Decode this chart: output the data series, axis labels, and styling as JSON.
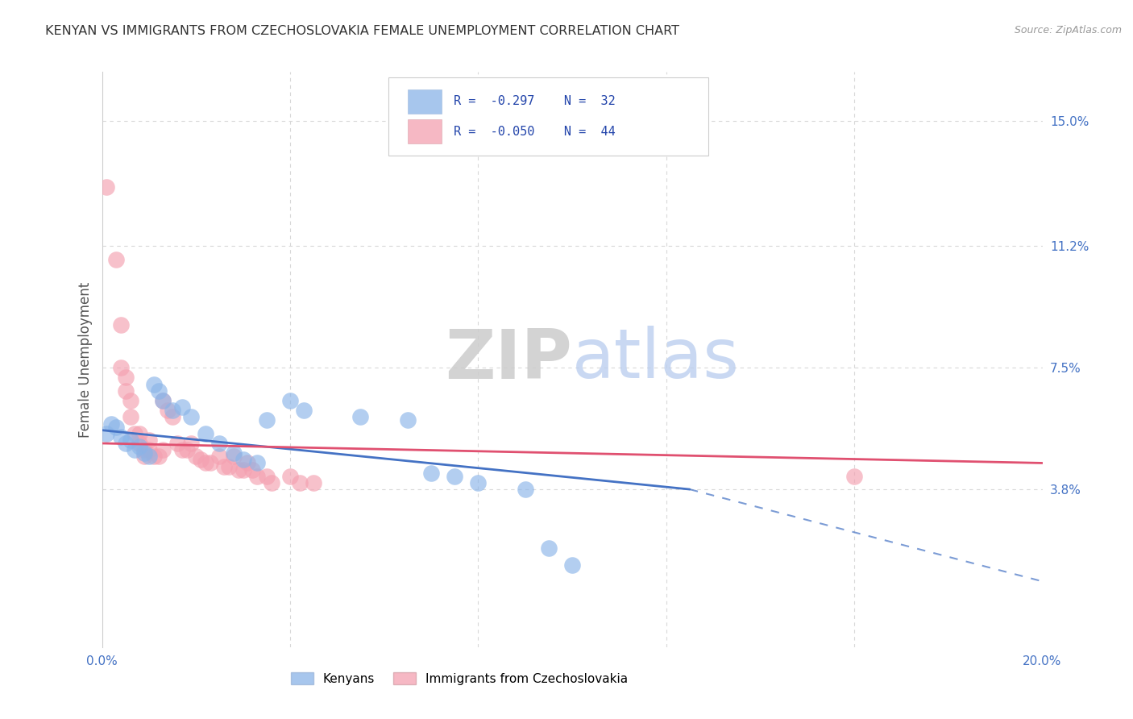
{
  "title": "KENYAN VS IMMIGRANTS FROM CZECHOSLOVAKIA FEMALE UNEMPLOYMENT CORRELATION CHART",
  "source": "Source: ZipAtlas.com",
  "ylabel": "Female Unemployment",
  "xlim": [
    0.0,
    0.2
  ],
  "ylim": [
    -0.01,
    0.165
  ],
  "ytick_positions": [
    0.038,
    0.075,
    0.112,
    0.15
  ],
  "ytick_labels": [
    "3.8%",
    "7.5%",
    "11.2%",
    "15.0%"
  ],
  "kenyan_color": "#8ab4e8",
  "czech_color": "#f4a0b0",
  "kenyan_line_color": "#4472c4",
  "czech_line_color": "#e05070",
  "watermark_zip": "ZIP",
  "watermark_atlas": "atlas",
  "legend_bottom_1": "Kenyans",
  "legend_bottom_2": "Immigrants from Czechoslovakia",
  "background_color": "#ffffff",
  "grid_color": "#d8d8d8",
  "title_color": "#333333",
  "source_color": "#999999",
  "kenyan_points": [
    [
      0.001,
      0.055
    ],
    [
      0.002,
      0.058
    ],
    [
      0.003,
      0.057
    ],
    [
      0.004,
      0.054
    ],
    [
      0.005,
      0.052
    ],
    [
      0.006,
      0.053
    ],
    [
      0.007,
      0.05
    ],
    [
      0.008,
      0.051
    ],
    [
      0.009,
      0.049
    ],
    [
      0.01,
      0.048
    ],
    [
      0.011,
      0.07
    ],
    [
      0.012,
      0.068
    ],
    [
      0.013,
      0.065
    ],
    [
      0.015,
      0.062
    ],
    [
      0.017,
      0.063
    ],
    [
      0.019,
      0.06
    ],
    [
      0.022,
      0.055
    ],
    [
      0.025,
      0.052
    ],
    [
      0.028,
      0.049
    ],
    [
      0.03,
      0.047
    ],
    [
      0.033,
      0.046
    ],
    [
      0.035,
      0.059
    ],
    [
      0.04,
      0.065
    ],
    [
      0.043,
      0.062
    ],
    [
      0.055,
      0.06
    ],
    [
      0.065,
      0.059
    ],
    [
      0.07,
      0.043
    ],
    [
      0.075,
      0.042
    ],
    [
      0.08,
      0.04
    ],
    [
      0.09,
      0.038
    ],
    [
      0.095,
      0.02
    ],
    [
      0.1,
      0.015
    ]
  ],
  "czech_points": [
    [
      0.001,
      0.13
    ],
    [
      0.003,
      0.108
    ],
    [
      0.004,
      0.088
    ],
    [
      0.004,
      0.075
    ],
    [
      0.005,
      0.072
    ],
    [
      0.005,
      0.068
    ],
    [
      0.006,
      0.065
    ],
    [
      0.006,
      0.06
    ],
    [
      0.007,
      0.055
    ],
    [
      0.008,
      0.055
    ],
    [
      0.008,
      0.052
    ],
    [
      0.009,
      0.05
    ],
    [
      0.009,
      0.048
    ],
    [
      0.01,
      0.053
    ],
    [
      0.01,
      0.05
    ],
    [
      0.011,
      0.048
    ],
    [
      0.012,
      0.048
    ],
    [
      0.013,
      0.05
    ],
    [
      0.013,
      0.065
    ],
    [
      0.014,
      0.062
    ],
    [
      0.015,
      0.06
    ],
    [
      0.016,
      0.052
    ],
    [
      0.017,
      0.05
    ],
    [
      0.018,
      0.05
    ],
    [
      0.019,
      0.052
    ],
    [
      0.02,
      0.048
    ],
    [
      0.021,
      0.047
    ],
    [
      0.022,
      0.046
    ],
    [
      0.023,
      0.046
    ],
    [
      0.025,
      0.048
    ],
    [
      0.026,
      0.045
    ],
    [
      0.027,
      0.045
    ],
    [
      0.028,
      0.048
    ],
    [
      0.029,
      0.044
    ],
    [
      0.03,
      0.044
    ],
    [
      0.031,
      0.046
    ],
    [
      0.032,
      0.044
    ],
    [
      0.033,
      0.042
    ],
    [
      0.035,
      0.042
    ],
    [
      0.036,
      0.04
    ],
    [
      0.04,
      0.042
    ],
    [
      0.042,
      0.04
    ],
    [
      0.045,
      0.04
    ],
    [
      0.16,
      0.042
    ]
  ],
  "kenyan_line": {
    "x0": 0.0,
    "x1": 0.125,
    "y0": 0.056,
    "y1": 0.038
  },
  "kenyan_dash_line": {
    "x0": 0.125,
    "x1": 0.2,
    "y0": 0.038,
    "y1": 0.01
  },
  "czech_line": {
    "x0": 0.0,
    "x1": 0.2,
    "y0": 0.052,
    "y1": 0.046
  }
}
